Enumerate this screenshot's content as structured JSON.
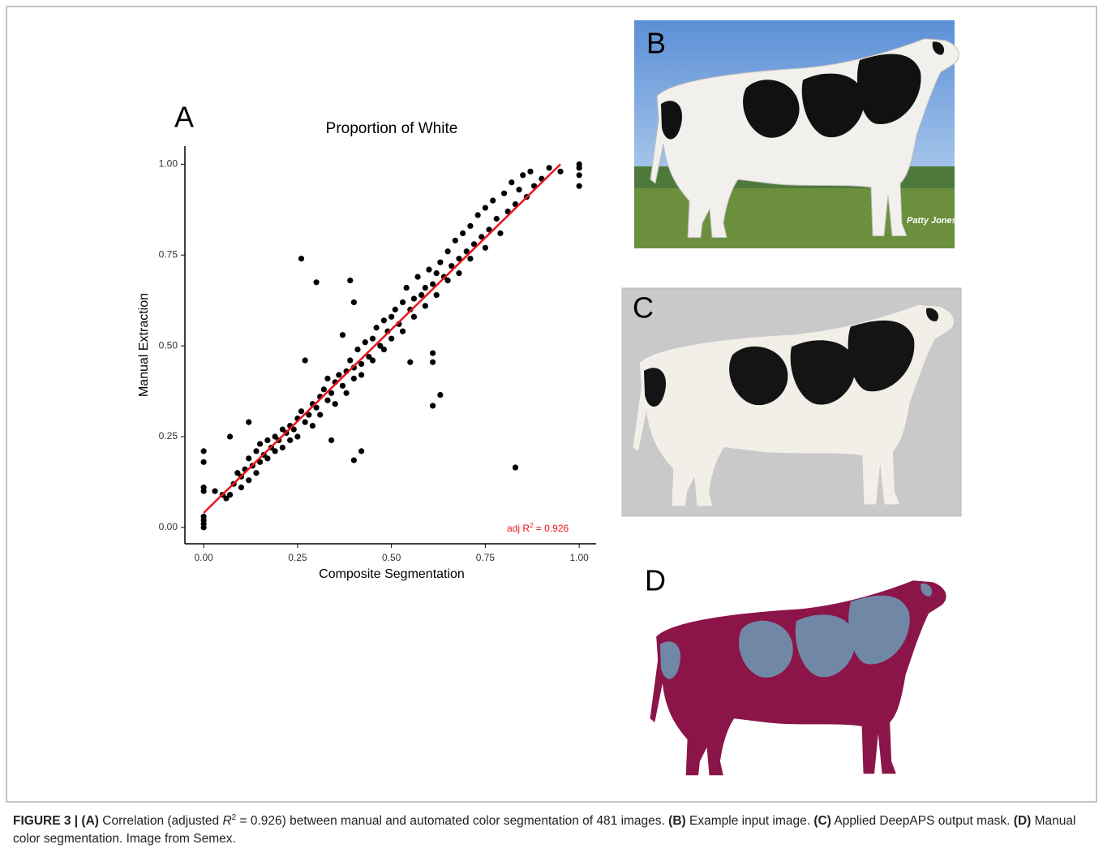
{
  "chart_data": {
    "type": "scatter",
    "panel_label": "A",
    "title": "Proportion of White",
    "x_label": "Composite Segmentation",
    "y_label": "Manual Extraction",
    "xlim": [
      -0.05,
      1.045
    ],
    "ylim": [
      -0.045,
      1.05
    ],
    "xticks": [
      {
        "value": 0,
        "label": "0.00"
      },
      {
        "value": 0.25,
        "label": "0.25"
      },
      {
        "value": 0.5,
        "label": "0.50"
      },
      {
        "value": 0.75,
        "label": "0.75"
      },
      {
        "value": 1,
        "label": "1.00"
      }
    ],
    "yticks": [
      {
        "value": 0,
        "label": "0.00"
      },
      {
        "value": 0.25,
        "label": "0.25"
      },
      {
        "value": 0.5,
        "label": "0.50"
      },
      {
        "value": 0.75,
        "label": "0.75"
      },
      {
        "value": 1,
        "label": "1.00"
      }
    ],
    "color": "#000000",
    "x": [
      0.06,
      0.08,
      0.09,
      0.1,
      0.1,
      0.11,
      0.12,
      0.12,
      0.13,
      0.14,
      0.14,
      0.15,
      0.15,
      0.16,
      0.17,
      0.17,
      0.18,
      0.19,
      0.19,
      0.2,
      0.21,
      0.21,
      0.22,
      0.23,
      0.23,
      0.24,
      0.25,
      0.25,
      0.26,
      0.27,
      0.27,
      0.28,
      0.29,
      0.29,
      0.3,
      0.31,
      0.31,
      0.32,
      0.33,
      0.33,
      0.34,
      0.35,
      0.35,
      0.36,
      0.37,
      0.37,
      0.38,
      0.38,
      0.39,
      0.4,
      0.4,
      0.41,
      0.42,
      0.42,
      0.43,
      0.44,
      0.45,
      0.45,
      0.46,
      0.47,
      0.48,
      0.48,
      0.49,
      0.5,
      0.5,
      0.51,
      0.52,
      0.53,
      0.53,
      0.54,
      0.55,
      0.56,
      0.56,
      0.57,
      0.58,
      0.59,
      0.59,
      0.6,
      0.61,
      0.62,
      0.62,
      0.63,
      0.64,
      0.65,
      0.65,
      0.66,
      0.67,
      0.68,
      0.68,
      0.69,
      0.7,
      0.71,
      0.71,
      0.72,
      0.73,
      0.74,
      0.75,
      0.75,
      0.76,
      0.77,
      0.78,
      0.79,
      0.8,
      0.81,
      0.82,
      0.83,
      0.84,
      0.85,
      0.86,
      0.87,
      0.88,
      0.9,
      0.92,
      0.95,
      0.26,
      0.3,
      0.39,
      0.4,
      0.83,
      0.4,
      0.42,
      0.34,
      0.61,
      0.63,
      0.61,
      0.61,
      0.55,
      0,
      0,
      0,
      0,
      0,
      0,
      0,
      0,
      1,
      1,
      1,
      1,
      0.07,
      0.03,
      0.05,
      0.07,
      0.12
    ],
    "values": [
      0.08,
      0.12,
      0.15,
      0.14,
      0.11,
      0.16,
      0.13,
      0.19,
      0.17,
      0.21,
      0.15,
      0.18,
      0.23,
      0.2,
      0.19,
      0.24,
      0.22,
      0.25,
      0.21,
      0.24,
      0.27,
      0.22,
      0.26,
      0.28,
      0.24,
      0.27,
      0.3,
      0.25,
      0.32,
      0.29,
      0.46,
      0.31,
      0.34,
      0.28,
      0.33,
      0.36,
      0.31,
      0.38,
      0.35,
      0.41,
      0.37,
      0.4,
      0.34,
      0.42,
      0.39,
      0.53,
      0.43,
      0.37,
      0.46,
      0.44,
      0.41,
      0.49,
      0.45,
      0.42,
      0.51,
      0.47,
      0.52,
      0.46,
      0.55,
      0.5,
      0.57,
      0.49,
      0.54,
      0.58,
      0.52,
      0.6,
      0.56,
      0.62,
      0.54,
      0.66,
      0.6,
      0.63,
      0.58,
      0.69,
      0.64,
      0.66,
      0.61,
      0.71,
      0.67,
      0.7,
      0.64,
      0.73,
      0.69,
      0.76,
      0.68,
      0.72,
      0.79,
      0.74,
      0.7,
      0.81,
      0.76,
      0.83,
      0.74,
      0.78,
      0.86,
      0.8,
      0.88,
      0.77,
      0.82,
      0.9,
      0.85,
      0.81,
      0.92,
      0.87,
      0.95,
      0.89,
      0.93,
      0.97,
      0.91,
      0.98,
      0.94,
      0.96,
      0.99,
      0.98,
      0.74,
      0.675,
      0.68,
      0.62,
      0.165,
      0.185,
      0.21,
      0.24,
      0.335,
      0.365,
      0.48,
      0.455,
      0.455,
      0.21,
      0.18,
      0.1,
      0.11,
      0.03,
      0.02,
      0.01,
      0,
      1,
      0.99,
      0.97,
      0.94,
      0.25,
      0.1,
      0.09,
      0.09,
      0.29
    ],
    "fit_line": {
      "x": [
        0,
        0.95
      ],
      "y": [
        0.04,
        1.0
      ],
      "color": "#e8141a"
    },
    "annotation": [
      "adj R",
      "2",
      " = 0.926"
    ],
    "annotation_color": "#e8141a"
  },
  "panels": {
    "B": {
      "label": "B",
      "watermark": "Patty Jones"
    },
    "C": {
      "label": "C"
    },
    "D": {
      "label": "D"
    }
  },
  "caption": [
    {
      "text": "FIGURE 3 | (A)",
      "bold": true
    },
    {
      "text": " Correlation (adjusted "
    },
    {
      "text": "R",
      "italic": true
    },
    {
      "text": "2",
      "sup": true
    },
    {
      "text": " = 0.926) between manual and automated color segmentation of 481 images. "
    },
    {
      "text": "(B)",
      "bold": true
    },
    {
      "text": " Example input image. "
    },
    {
      "text": "(C)",
      "bold": true
    },
    {
      "text": " Applied DeepAPS output mask. "
    },
    {
      "text": "(D)",
      "bold": true
    },
    {
      "text": " Manual color segmentation. Image from Semex."
    }
  ]
}
